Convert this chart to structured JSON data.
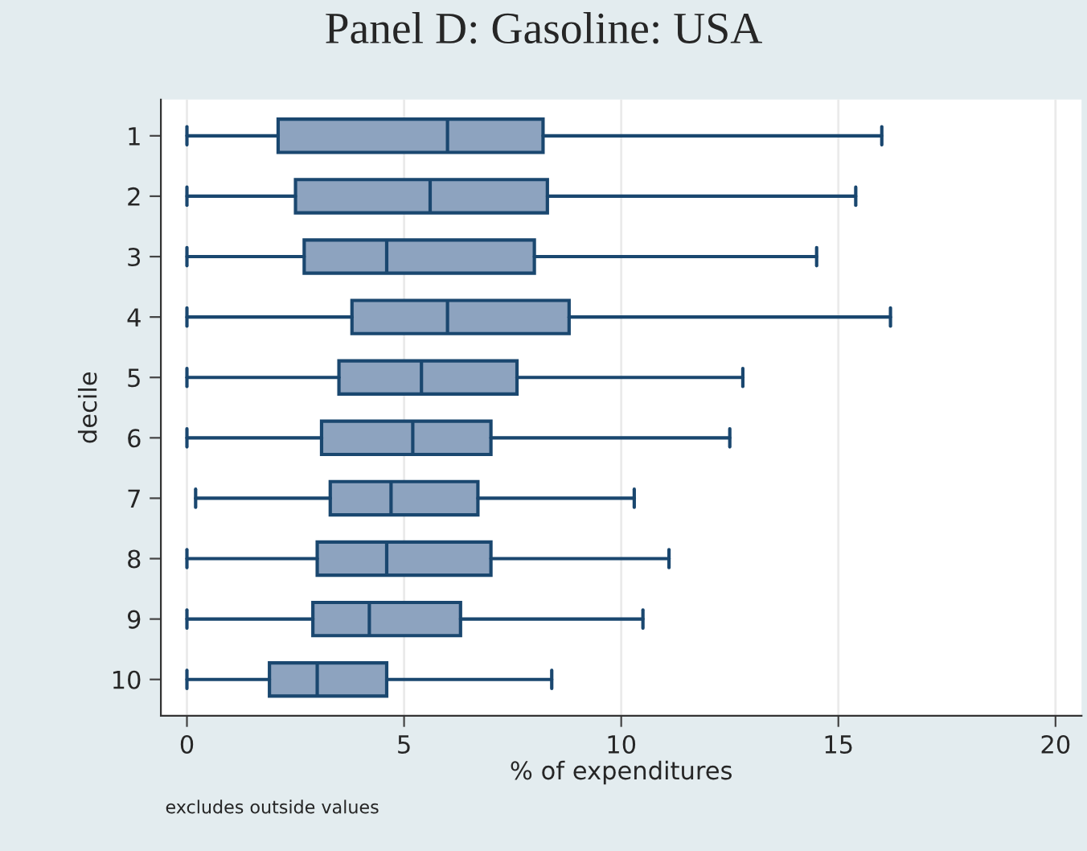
{
  "chart_data": {
    "type": "box",
    "orientation": "horizontal",
    "title": "Panel D: Gasoline: USA",
    "xlabel": "% of expenditures",
    "ylabel": "decile",
    "categories": [
      "1",
      "2",
      "3",
      "4",
      "5",
      "6",
      "7",
      "8",
      "9",
      "10"
    ],
    "boxes": [
      {
        "low": 0,
        "q1": 2.1,
        "median": 6.0,
        "q3": 8.2,
        "high": 16.0
      },
      {
        "low": 0,
        "q1": 2.5,
        "median": 5.6,
        "q3": 8.3,
        "high": 15.4
      },
      {
        "low": 0,
        "q1": 2.7,
        "median": 4.6,
        "q3": 8.0,
        "high": 14.5
      },
      {
        "low": 0,
        "q1": 3.8,
        "median": 6.0,
        "q3": 8.8,
        "high": 16.2
      },
      {
        "low": 0,
        "q1": 3.5,
        "median": 5.4,
        "q3": 7.6,
        "high": 12.8
      },
      {
        "low": 0,
        "q1": 3.1,
        "median": 5.2,
        "q3": 7.0,
        "high": 12.5
      },
      {
        "low": 0.2,
        "q1": 3.3,
        "median": 4.7,
        "q3": 6.7,
        "high": 10.3
      },
      {
        "low": 0,
        "q1": 3.0,
        "median": 4.6,
        "q3": 7.0,
        "high": 11.1
      },
      {
        "low": 0,
        "q1": 2.9,
        "median": 4.2,
        "q3": 6.3,
        "high": 10.5
      },
      {
        "low": 0,
        "q1": 1.9,
        "median": 3.0,
        "q3": 4.6,
        "high": 8.4
      }
    ],
    "color": "#8da3bf",
    "xlim": [
      -0.6,
      20.6
    ],
    "xticks": [
      0,
      5,
      10,
      15,
      20
    ],
    "grid": "x",
    "annotations": [
      "excludes outside values"
    ]
  }
}
